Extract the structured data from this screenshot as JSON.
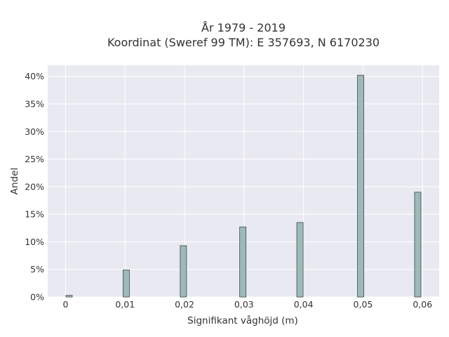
{
  "chart_data": {
    "type": "bar",
    "title_lines": [
      "År 1979 - 2019",
      "Koordinat (Sweref 99 TM): E 357693, N 6170230"
    ],
    "xlabel": "Signifikant våghöjd (m)",
    "ylabel": "Andel",
    "x_ticks": [
      "0",
      "0,01",
      "0,02",
      "0,03",
      "0,04",
      "0,05",
      "0,06"
    ],
    "x_tick_values": [
      0,
      0.01,
      0.02,
      0.03,
      0.04,
      0.05,
      0.06
    ],
    "y_ticks": [
      "0%",
      "5%",
      "10%",
      "15%",
      "20%",
      "25%",
      "30%",
      "35%",
      "40%"
    ],
    "y_tick_values": [
      0,
      5,
      10,
      15,
      20,
      25,
      30,
      35,
      40
    ],
    "xlim": [
      -0.003,
      0.0628
    ],
    "ylim": [
      0,
      42
    ],
    "bars": [
      {
        "x": 0.0006,
        "value": 0.3
      },
      {
        "x": 0.0102,
        "value": 4.9
      },
      {
        "x": 0.0198,
        "value": 9.3
      },
      {
        "x": 0.0298,
        "value": 12.7
      },
      {
        "x": 0.0394,
        "value": 13.5
      },
      {
        "x": 0.0496,
        "value": 40.2
      },
      {
        "x": 0.0592,
        "value": 19.0
      }
    ],
    "grid": true,
    "colors": {
      "plot_bg": "#e9e9f2",
      "grid": "#ffffff",
      "bar_fill": "#9fb8b8",
      "bar_stroke": "#3a4a4a"
    }
  }
}
